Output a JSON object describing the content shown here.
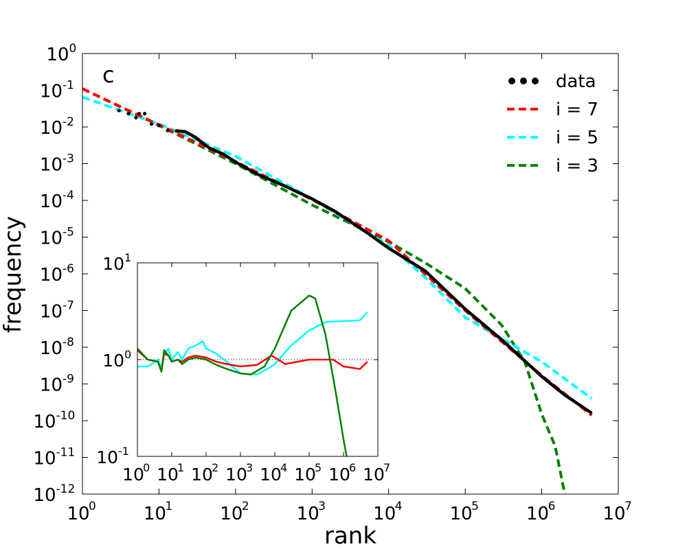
{
  "chart_data": [
    {
      "type": "line",
      "scale": "log-log",
      "panel_label": "c",
      "xlabel": "rank",
      "ylabel": "frequency",
      "xlim": [
        1,
        10000000
      ],
      "ylim": [
        1e-12,
        1
      ],
      "x_ticks": [
        {
          "base": "10",
          "exp": "0",
          "value": 1
        },
        {
          "base": "10",
          "exp": "1",
          "value": 10
        },
        {
          "base": "10",
          "exp": "2",
          "value": 100
        },
        {
          "base": "10",
          "exp": "3",
          "value": 1000
        },
        {
          "base": "10",
          "exp": "4",
          "value": 10000
        },
        {
          "base": "10",
          "exp": "5",
          "value": 100000
        },
        {
          "base": "10",
          "exp": "6",
          "value": 1000000
        },
        {
          "base": "10",
          "exp": "7",
          "value": 10000000
        }
      ],
      "y_ticks": [
        {
          "base": "10",
          "exp": "0",
          "value": 1
        },
        {
          "base": "10",
          "exp": "-1",
          "value": 0.1
        },
        {
          "base": "10",
          "exp": "-2",
          "value": 0.01
        },
        {
          "base": "10",
          "exp": "-3",
          "value": 0.001
        },
        {
          "base": "10",
          "exp": "-4",
          "value": 0.0001
        },
        {
          "base": "10",
          "exp": "-5",
          "value": 1e-05
        },
        {
          "base": "10",
          "exp": "-6",
          "value": 1e-06
        },
        {
          "base": "10",
          "exp": "-7",
          "value": 1e-07
        },
        {
          "base": "10",
          "exp": "-8",
          "value": 1e-08
        },
        {
          "base": "10",
          "exp": "-9",
          "value": 1e-09
        },
        {
          "base": "10",
          "exp": "-10",
          "value": 1e-10
        },
        {
          "base": "10",
          "exp": "-11",
          "value": 1e-11
        },
        {
          "base": "10",
          "exp": "-12",
          "value": 1e-12
        }
      ],
      "legend_position": "top-right",
      "series": [
        {
          "name": "data",
          "color": "#000000",
          "style": "dots",
          "x": [
            3,
            4,
            5,
            5.5,
            6.5,
            8,
            10,
            13,
            17,
            22,
            30,
            45,
            70,
            100,
            200,
            400,
            1000,
            2000,
            5000,
            10000,
            30000,
            100000,
            300000,
            1000000,
            2000000,
            4500000
          ],
          "y": [
            0.028,
            0.023,
            0.018,
            0.023,
            0.023,
            0.012,
            0.011,
            0.008,
            0.0078,
            0.0075,
            0.0052,
            0.0027,
            0.0018,
            0.0011,
            0.0005,
            0.00027,
            0.00011,
            5e-05,
            1.4e-05,
            5e-06,
            1.2e-06,
            1.1e-07,
            1.6e-08,
            1.6e-09,
            5e-10,
            1.6e-10
          ]
        },
        {
          "name": "i = 7",
          "color": "#ff0000",
          "style": "dashed",
          "x": [
            1,
            10,
            100,
            1000,
            10000,
            100000,
            1000000,
            4500000
          ],
          "y": [
            0.11,
            0.0115,
            0.00115,
            0.000105,
            8e-06,
            1e-07,
            1.7e-09,
            1.4e-10
          ]
        },
        {
          "name": "i = 5",
          "color": "#00ffff",
          "style": "dashed",
          "x": [
            1,
            10,
            100,
            1000,
            10000,
            30000,
            100000,
            1000000,
            4500000
          ],
          "y": [
            0.065,
            0.012,
            0.0016,
            0.00011,
            6e-06,
            8e-07,
            6.5e-08,
            4e-09,
            4e-10
          ]
        },
        {
          "name": "i = 3",
          "color": "#008000",
          "style": "dashed",
          "x": [
            1,
            10,
            100,
            1000,
            10000,
            30000,
            100000,
            300000,
            600000,
            1000000,
            1500000,
            2000000
          ],
          "y": [
            0.11,
            0.011,
            0.001,
            7.5e-05,
            7.5e-06,
            2e-06,
            4e-07,
            4e-08,
            4e-09,
            1.5e-10,
            2e-11,
            1e-12
          ]
        }
      ]
    },
    {
      "type": "line",
      "scale": "log-log",
      "role": "inset",
      "xlim": [
        1,
        10000000
      ],
      "ylim": [
        0.1,
        10
      ],
      "x_ticks": [
        {
          "base": "10",
          "exp": "0",
          "value": 1
        },
        {
          "base": "10",
          "exp": "1",
          "value": 10
        },
        {
          "base": "10",
          "exp": "2",
          "value": 100
        },
        {
          "base": "10",
          "exp": "3",
          "value": 1000
        },
        {
          "base": "10",
          "exp": "4",
          "value": 10000
        },
        {
          "base": "10",
          "exp": "5",
          "value": 100000
        },
        {
          "base": "10",
          "exp": "6",
          "value": 1000000
        },
        {
          "base": "10",
          "exp": "7",
          "value": 10000000
        }
      ],
      "y_ticks": [
        {
          "label": "10",
          "exp": "1",
          "value": 10
        },
        {
          "label": "10",
          "exp": "0",
          "value": 1
        },
        {
          "label": "10",
          "exp": "-1",
          "value": 0.1
        }
      ],
      "reference_line": 1,
      "series": [
        {
          "name": "i = 7",
          "color": "#ff0000",
          "x": [
            1,
            2,
            4,
            5,
            6,
            8,
            10,
            15,
            20,
            30,
            50,
            100,
            200,
            400,
            1000,
            3000,
            8000,
            10000,
            20000,
            100000,
            500000,
            1000000,
            3000000,
            5000000
          ],
          "y": [
            1.25,
            1.0,
            0.95,
            0.75,
            1.15,
            1.1,
            0.95,
            1.0,
            0.95,
            1.05,
            1.1,
            1.05,
            0.95,
            0.9,
            0.85,
            0.88,
            1.1,
            1.05,
            0.9,
            1.0,
            1.0,
            0.85,
            0.8,
            0.95
          ]
        },
        {
          "name": "i = 5",
          "color": "#00ffff",
          "x": [
            1,
            2,
            4,
            5,
            6,
            8,
            10,
            15,
            20,
            30,
            50,
            80,
            100,
            200,
            400,
            1000,
            3000,
            8000,
            10000,
            30000,
            100000,
            300000,
            1000000,
            3000000,
            5000000
          ],
          "y": [
            0.85,
            0.85,
            1.0,
            0.8,
            1.15,
            1.3,
            1.0,
            1.2,
            1.0,
            1.3,
            1.4,
            1.55,
            1.3,
            1.15,
            0.95,
            0.72,
            0.7,
            0.85,
            0.9,
            1.4,
            2.0,
            2.45,
            2.5,
            2.55,
            3.1
          ]
        },
        {
          "name": "i = 3",
          "color": "#008000",
          "x": [
            1,
            2,
            4,
            5,
            6,
            8,
            10,
            15,
            20,
            30,
            50,
            100,
            200,
            400,
            1000,
            2000,
            5000,
            10000,
            30000,
            100000,
            150000,
            300000,
            600000,
            1000000,
            1300000
          ],
          "y": [
            1.3,
            1.0,
            0.95,
            0.75,
            1.25,
            1.1,
            0.95,
            1.0,
            0.9,
            1.0,
            1.05,
            1.0,
            0.88,
            0.8,
            0.72,
            0.7,
            0.85,
            1.3,
            3.2,
            4.6,
            4.3,
            1.8,
            0.45,
            0.15,
            0.09
          ]
        }
      ]
    }
  ]
}
